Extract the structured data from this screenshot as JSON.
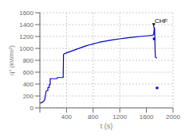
{
  "chart_data": {
    "type": "line",
    "title": "",
    "xlabel": "t (s)",
    "ylabel": "q\" (kW/m²)",
    "xlim": [
      0,
      2000
    ],
    "ylim": [
      0,
      1600
    ],
    "xticks": [
      {
        "value": 0,
        "label": ""
      },
      400,
      800,
      1200,
      1600,
      2000
    ],
    "yticks": [
      0,
      200,
      400,
      600,
      800,
      1000,
      1200,
      1400,
      1600
    ],
    "grid": true,
    "series": [
      {
        "type": "line",
        "color": "#0000cc",
        "line_style": "solid",
        "x": [
          0,
          20,
          40,
          60,
          75,
          80,
          85,
          90,
          95,
          100,
          100,
          120,
          120,
          140,
          140,
          155,
          155,
          180,
          185,
          200,
          220,
          250,
          270,
          290,
          310,
          330,
          350,
          355,
          370,
          400,
          450,
          500,
          550,
          600,
          650,
          700,
          750,
          800,
          850,
          900,
          950,
          1000,
          1100,
          1200,
          1300,
          1400,
          1500,
          1600,
          1650,
          1670,
          1680,
          1690,
          1700,
          1705,
          1710,
          1712,
          1714,
          1716,
          1718,
          1720,
          1722,
          1724,
          1726,
          1728,
          1730,
          1732,
          1734,
          1736,
          1750,
          1760
        ],
        "values": [
          80,
          85,
          95,
          115,
          145,
          190,
          220,
          260,
          280,
          290,
          290,
          290,
          340,
          340,
          390,
          390,
          490,
          490,
          490,
          490,
          490,
          490,
          510,
          510,
          510,
          510,
          510,
          900,
          910,
          925,
          945,
          965,
          985,
          1005,
          1025,
          1045,
          1060,
          1075,
          1090,
          1105,
          1115,
          1125,
          1145,
          1160,
          1175,
          1188,
          1200,
          1210,
          1215,
          1218,
          1220,
          1222,
          1224,
          1228,
          1235,
          1260,
          1290,
          1320,
          1345,
          1355,
          1330,
          1270,
          1180,
          1080,
          980,
          920,
          880,
          850,
          840,
          840
        ]
      },
      {
        "type": "scatter",
        "color": "#0000cc",
        "marker": "square",
        "x": [
          1715,
          1760
        ],
        "values": [
          1160,
          335
        ]
      }
    ],
    "annotations": [
      {
        "text": "CHF",
        "x": 1725,
        "y": 1425,
        "color": "black",
        "arrow_x": 1710,
        "arrow_y": 1350,
        "arrow_top": 1405,
        "marker": "triangle_down"
      }
    ]
  }
}
